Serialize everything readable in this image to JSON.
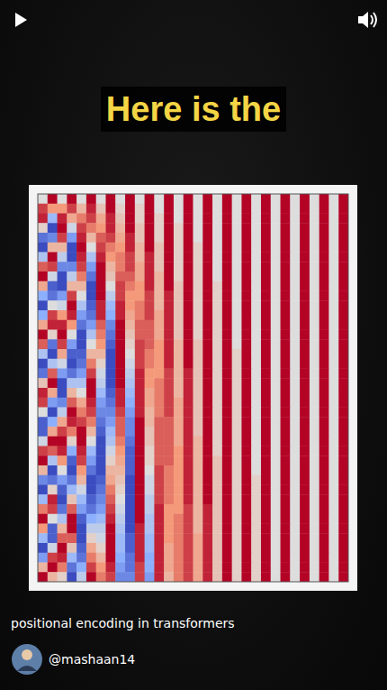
{
  "video": {
    "overlay_text": "Here is the",
    "caption": "positional encoding in transformers",
    "channel": "@mashaan14"
  },
  "chart_data": {
    "type": "heatmap",
    "tick_labels": false,
    "zlim": [
      -1,
      1
    ],
    "cells": [
      [
        0,
        1,
        0,
        1,
        0,
        1,
        0,
        1,
        0,
        1,
        0,
        1,
        0,
        1,
        0,
        1,
        0,
        1,
        0,
        1,
        0,
        1,
        0,
        1,
        0,
        1,
        0,
        1,
        0,
        1,
        0,
        1
      ],
      [
        0.8,
        0.5,
        0.5,
        0.8,
        0.3,
        0.9,
        0.2,
        1,
        0.1,
        1,
        0.1,
        1,
        0,
        1,
        0,
        1,
        0,
        1,
        0,
        1,
        0,
        1,
        0,
        1,
        0,
        1,
        0,
        1,
        0,
        1,
        0,
        1
      ],
      [
        0.9,
        -0.4,
        0.9,
        0.4,
        0.6,
        0.8,
        0.4,
        0.9,
        0.2,
        1,
        0.1,
        1,
        0.1,
        1,
        0,
        1,
        0,
        1,
        0,
        1,
        0,
        1,
        0,
        1,
        0,
        1,
        0,
        1,
        0,
        1,
        0,
        1
      ],
      [
        0.1,
        -1,
        1,
        -0.1,
        0.8,
        0.6,
        0.5,
        0.9,
        0.3,
        1,
        0.2,
        1,
        0.1,
        1,
        0.1,
        1,
        0,
        1,
        0,
        1,
        0,
        1,
        0,
        1,
        0,
        1,
        0,
        1,
        0,
        1,
        0,
        1
      ],
      [
        -0.8,
        -0.7,
        0.8,
        -0.6,
        0.9,
        0.3,
        0.7,
        0.8,
        0.4,
        0.9,
        0.2,
        1,
        0.1,
        1,
        0.1,
        1,
        0,
        1,
        0,
        1,
        0,
        1,
        0,
        1,
        0,
        1,
        0,
        1,
        0,
        1,
        0,
        1
      ],
      [
        -1,
        0.3,
        0.3,
        -1,
        1,
        0,
        0.8,
        0.6,
        0.5,
        0.9,
        0.3,
        1,
        0.2,
        1,
        0.1,
        1,
        0.1,
        1,
        0,
        1,
        0,
        1,
        0,
        1,
        0,
        1,
        0,
        1,
        0,
        1,
        0,
        1
      ],
      [
        -0.3,
        1,
        -0.2,
        -1,
        0.9,
        -0.3,
        0.9,
        0.5,
        0.6,
        0.8,
        0.3,
        0.9,
        0.2,
        1,
        0.1,
        1,
        0.1,
        1,
        0,
        1,
        0,
        1,
        0,
        1,
        0,
        1,
        0,
        1,
        0,
        1,
        0,
        1
      ],
      [
        0.7,
        0.8,
        -0.7,
        -0.7,
        0.8,
        -0.6,
        1,
        0.3,
        0.6,
        0.8,
        0.4,
        0.9,
        0.2,
        1,
        0.1,
        1,
        0.1,
        1,
        0,
        1,
        0,
        1,
        0,
        1,
        0,
        1,
        0,
        1,
        0,
        1,
        0,
        1
      ],
      [
        1,
        -0.1,
        -1,
        -0.2,
        0.6,
        -0.8,
        1,
        0.2,
        0.7,
        0.7,
        0.4,
        0.9,
        0.3,
        1,
        0.1,
        1,
        0.1,
        1,
        0,
        1,
        0,
        1,
        0,
        1,
        0,
        1,
        0,
        1,
        0,
        1,
        0,
        1
      ],
      [
        0.4,
        -0.9,
        -1,
        0.3,
        0.3,
        -1,
        1,
        0,
        0.8,
        0.6,
        0.5,
        0.9,
        0.3,
        1,
        0.2,
        1,
        0.1,
        1,
        0.1,
        1,
        0,
        1,
        0,
        1,
        0,
        1,
        0,
        1,
        0,
        1,
        0,
        1
      ],
      [
        -0.5,
        -0.8,
        -0.6,
        0.8,
        0,
        -1,
        1,
        -0.2,
        0.8,
        0.5,
        0.5,
        0.8,
        0.3,
        0.9,
        0.2,
        1,
        0.1,
        1,
        0.1,
        1,
        0,
        1,
        0,
        1,
        0,
        1,
        0,
        1,
        0,
        1,
        0,
        1
      ],
      [
        -1,
        0,
        -0.1,
        1,
        -0.3,
        -0.9,
        0.9,
        -0.4,
        0.9,
        0.5,
        0.6,
        0.8,
        0.3,
        0.9,
        0.2,
        1,
        0.1,
        1,
        0.1,
        1,
        0,
        1,
        0,
        1,
        0,
        1,
        0,
        1,
        0,
        1,
        0,
        1
      ],
      [
        -0.5,
        0.8,
        0.5,
        0.9,
        -0.6,
        -0.8,
        0.9,
        -0.5,
        0.9,
        0.4,
        0.6,
        0.8,
        0.4,
        0.9,
        0.2,
        1,
        0.1,
        1,
        0.1,
        1,
        0,
        1,
        0,
        1,
        0,
        1,
        0,
        1,
        0,
        1,
        0,
        1
      ],
      [
        0.4,
        0.9,
        0.9,
        0.5,
        -0.8,
        -0.6,
        0.7,
        -0.7,
        1,
        0.3,
        0.7,
        0.7,
        0.4,
        0.9,
        0.2,
        1,
        0.1,
        1,
        0.1,
        1,
        0,
        1,
        0,
        1,
        0,
        1,
        0,
        1,
        0,
        1,
        0,
        1
      ],
      [
        1,
        0.1,
        1,
        0,
        -1,
        -0.3,
        0.6,
        -0.8,
        1,
        0.2,
        0.7,
        0.7,
        0.4,
        0.9,
        0.2,
        1,
        0.1,
        1,
        0.1,
        1,
        0,
        1,
        0,
        1,
        0,
        1,
        0,
        1,
        0,
        1,
        0,
        1
      ],
      [
        0.7,
        -0.8,
        0.8,
        -0.6,
        -1,
        0,
        0.5,
        -0.9,
        1,
        0.1,
        0.8,
        0.7,
        0.5,
        0.9,
        0.3,
        1,
        0.2,
        1,
        0.1,
        1,
        0,
        1,
        0,
        1,
        0,
        1,
        0,
        1,
        0,
        1,
        0,
        1
      ],
      [
        -0.3,
        -1,
        0.4,
        -0.9,
        -0.9,
        0.3,
        0.3,
        -1,
        1,
        0,
        0.8,
        0.6,
        0.5,
        0.9,
        0.3,
        1,
        0.2,
        1,
        0.1,
        1,
        0.1,
        1,
        0,
        1,
        0,
        1,
        0,
        1,
        0,
        1,
        0,
        1
      ],
      [
        -1,
        -0.3,
        -0.1,
        -1,
        -0.8,
        0.6,
        0.1,
        -1,
        1,
        -0.1,
        0.8,
        0.6,
        0.5,
        0.9,
        0.3,
        1,
        0.2,
        1,
        0.1,
        1,
        0.1,
        1,
        0,
        1,
        0,
        1,
        0,
        1,
        0,
        1,
        0,
        1
      ],
      [
        -0.8,
        0.7,
        -0.6,
        -0.8,
        -0.6,
        0.8,
        -0.1,
        -1,
        1,
        -0.2,
        0.9,
        0.5,
        0.5,
        0.8,
        0.3,
        0.9,
        0.2,
        1,
        0.1,
        1,
        0.1,
        1,
        0,
        1,
        0,
        1,
        0,
        1,
        0,
        1,
        0,
        1
      ],
      [
        0.2,
        1,
        -1,
        -0.3,
        -0.3,
        1,
        -0.2,
        -1,
        1,
        -0.3,
        0.9,
        0.5,
        0.6,
        0.8,
        0.3,
        0.9,
        0.2,
        1,
        0.1,
        1,
        0.1,
        1,
        0,
        1,
        0,
        1,
        0,
        1,
        0,
        1,
        0,
        1
      ],
      [
        0.9,
        0.4,
        -1,
        0.3,
        0,
        1,
        -0.4,
        -0.9,
        0.9,
        -0.4,
        0.9,
        0.4,
        0.6,
        0.8,
        0.3,
        0.9,
        0.2,
        1,
        0.1,
        1,
        0.1,
        1,
        0,
        1,
        0,
        1,
        0,
        1,
        0,
        1,
        0,
        1
      ],
      [
        0.8,
        -0.6,
        -0.7,
        0.7,
        0.4,
        0.9,
        -0.6,
        -0.8,
        0.9,
        -0.5,
        0.9,
        0.4,
        0.6,
        0.8,
        0.4,
        0.9,
        0.2,
        1,
        0.1,
        1,
        0.1,
        1,
        0,
        1,
        0,
        1,
        0,
        1,
        0,
        1,
        0,
        1
      ],
      [
        0,
        -1,
        -0.2,
        1,
        0.6,
        0.8,
        -0.7,
        -0.7,
        0.8,
        -0.6,
        0.9,
        0.3,
        0.6,
        0.8,
        0.4,
        0.9,
        0.2,
        1,
        0.1,
        1,
        0.1,
        1,
        0,
        1,
        0,
        1,
        0,
        1,
        0,
        1,
        0,
        1
      ],
      [
        -0.9,
        -0.5,
        0.4,
        0.9,
        0.8,
        0.6,
        -0.8,
        -0.6,
        0.7,
        -0.7,
        1,
        0.3,
        0.7,
        0.7,
        0.4,
        0.9,
        0.2,
        1,
        0.1,
        1,
        0.1,
        1,
        0,
        1,
        0,
        1,
        0,
        1,
        0,
        1,
        0,
        1
      ],
      [
        -0.9,
        0.4,
        0.8,
        0.6,
        1,
        0.3,
        -0.9,
        -0.4,
        0.7,
        -0.7,
        1,
        0.2,
        0.7,
        0.7,
        0.4,
        0.9,
        0.2,
        1,
        0.1,
        1,
        0.1,
        1,
        0,
        1,
        0,
        1,
        0,
        1,
        0,
        1,
        0,
        1
      ],
      [
        -0.1,
        1,
        1,
        0.1,
        1,
        0,
        -1,
        -0.3,
        0.6,
        -0.8,
        1,
        0.2,
        0.7,
        0.7,
        0.4,
        0.9,
        0.3,
        1,
        0.1,
        1,
        0.1,
        1,
        0,
        1,
        0,
        1,
        0,
        1,
        0,
        1,
        0,
        1
      ],
      [
        0.8,
        0.7,
        0.9,
        -0.5,
        0.9,
        -0.4,
        -1,
        -0.1,
        0.5,
        -0.9,
        1,
        0.1,
        0.7,
        0.7,
        0.5,
        0.9,
        0.3,
        1,
        0.1,
        1,
        0.1,
        1,
        0,
        1,
        0,
        1,
        0,
        1,
        0,
        1,
        0,
        1
      ],
      [
        1,
        -0.3,
        0.5,
        -0.9,
        0.8,
        -0.6,
        -1,
        0.1,
        0.4,
        -0.9,
        1,
        0.1,
        0.7,
        0.7,
        0.5,
        0.9,
        0.3,
        1,
        0.2,
        1,
        0.1,
        1,
        0,
        1,
        0,
        1,
        0,
        1,
        0,
        1,
        0,
        1
      ],
      [
        0.3,
        -1,
        0,
        -1,
        0.5,
        -0.8,
        -1,
        0.3,
        0.3,
        -0.9,
        1,
        0,
        0.8,
        0.6,
        0.5,
        0.9,
        0.3,
        1,
        0.2,
        1,
        0.1,
        1,
        0,
        1,
        0,
        1,
        0,
        1,
        0,
        1,
        0,
        1
      ],
      [
        -0.7,
        -0.8,
        -0.6,
        -0.8,
        0.3,
        -1,
        -0.9,
        0.4,
        0.2,
        -1,
        1,
        -0.1,
        0.8,
        0.6,
        0.5,
        0.9,
        0.3,
        1,
        0.2,
        1,
        0.1,
        1,
        0.1,
        1,
        0,
        1,
        0,
        1,
        0,
        1,
        0,
        1
      ],
      [
        -1,
        0.1,
        -0.9,
        -0.4,
        -0.1,
        -1,
        -0.8,
        0.6,
        0.1,
        -1,
        1,
        -0.1,
        0.8,
        0.6,
        0.5,
        0.9,
        0.3,
        1,
        0.2,
        1,
        0.1,
        1,
        0.1,
        1,
        0,
        1,
        0,
        1,
        0,
        1,
        0,
        1
      ],
      [
        -0.4,
        0.9,
        -1,
        0.2,
        -0.4,
        -0.9,
        -0.7,
        0.7,
        0,
        -1,
        1,
        -0.2,
        0.8,
        0.6,
        0.5,
        0.9,
        0.3,
        1,
        0.2,
        1,
        0.1,
        1,
        0.1,
        1,
        0,
        1,
        0,
        1,
        0,
        1,
        0,
        1
      ],
      [
        0.6,
        0.8,
        -0.8,
        0.7,
        -0.6,
        -0.8,
        -0.6,
        0.8,
        -0.1,
        -1,
        1,
        -0.2,
        0.9,
        0.5,
        0.5,
        0.8,
        0.3,
        0.9,
        0.2,
        1,
        0.1,
        1,
        0.1,
        1,
        0,
        1,
        0,
        1,
        0,
        1,
        0,
        1
      ],
      [
        1,
        0,
        -0.3,
        1,
        -0.9,
        -0.5,
        -0.4,
        0.9,
        -0.2,
        -1,
        1,
        -0.3,
        0.9,
        0.5,
        0.6,
        0.8,
        0.3,
        0.9,
        0.2,
        1,
        0.1,
        1,
        0.1,
        1,
        0,
        1,
        0,
        1,
        0,
        1,
        0,
        1
      ],
      [
        0.5,
        -0.9,
        0.3,
        1,
        -1,
        -0.2,
        -0.2,
        1,
        -0.3,
        -1,
        0.9,
        -0.3,
        0.9,
        0.5,
        0.6,
        0.8,
        0.3,
        0.9,
        0.2,
        1,
        0.1,
        1,
        0.1,
        1,
        0,
        1,
        0,
        1,
        0,
        1,
        0,
        1
      ],
      [
        -0.4,
        -0.9,
        0.7,
        0.7,
        -1,
        0.1,
        -0.1,
        1,
        -0.4,
        -0.9,
        0.9,
        -0.4,
        0.9,
        0.5,
        0.6,
        0.8,
        0.4,
        0.9,
        0.2,
        1,
        0.1,
        1,
        0.1,
        1,
        0,
        1,
        0,
        1,
        0,
        1,
        0,
        1
      ],
      [
        -1,
        -0.1,
        1,
        0.2,
        -0.9,
        0.4,
        0.1,
        1,
        -0.4,
        -0.9,
        0.9,
        -0.4,
        0.9,
        0.4,
        0.6,
        0.8,
        0.4,
        0.9,
        0.2,
        1,
        0.1,
        1,
        0.1,
        1,
        0,
        1,
        0,
        1,
        0,
        1,
        0,
        1
      ],
      [
        -0.6,
        0.8,
        0.9,
        -0.4,
        -0.8,
        0.6,
        0.3,
        1,
        -0.5,
        -0.8,
        0.9,
        -0.5,
        0.9,
        0.4,
        0.6,
        0.8,
        0.4,
        0.9,
        0.2,
        1,
        0.1,
        1,
        0.1,
        1,
        0,
        1,
        0,
        1,
        0,
        1,
        0,
        1
      ],
      [
        0.3,
        1,
        0.6,
        -0.8,
        -0.5,
        0.8,
        0.5,
        0.9,
        -0.6,
        -0.8,
        0.8,
        -0.5,
        0.9,
        0.4,
        0.6,
        0.8,
        0.4,
        0.9,
        0.2,
        1,
        0.1,
        1,
        0.1,
        1,
        0,
        1,
        0,
        1,
        0,
        1,
        0,
        1
      ],
      [
        1,
        0.3,
        0.1,
        -1,
        -0.2,
        1,
        0.6,
        0.8,
        -0.7,
        -0.7,
        0.8,
        -0.6,
        0.9,
        0.3,
        0.6,
        0.8,
        0.4,
        0.9,
        0.2,
        1,
        0.1,
        1,
        0.1,
        1,
        0,
        1,
        0,
        1,
        0,
        1,
        0,
        1
      ]
    ]
  }
}
